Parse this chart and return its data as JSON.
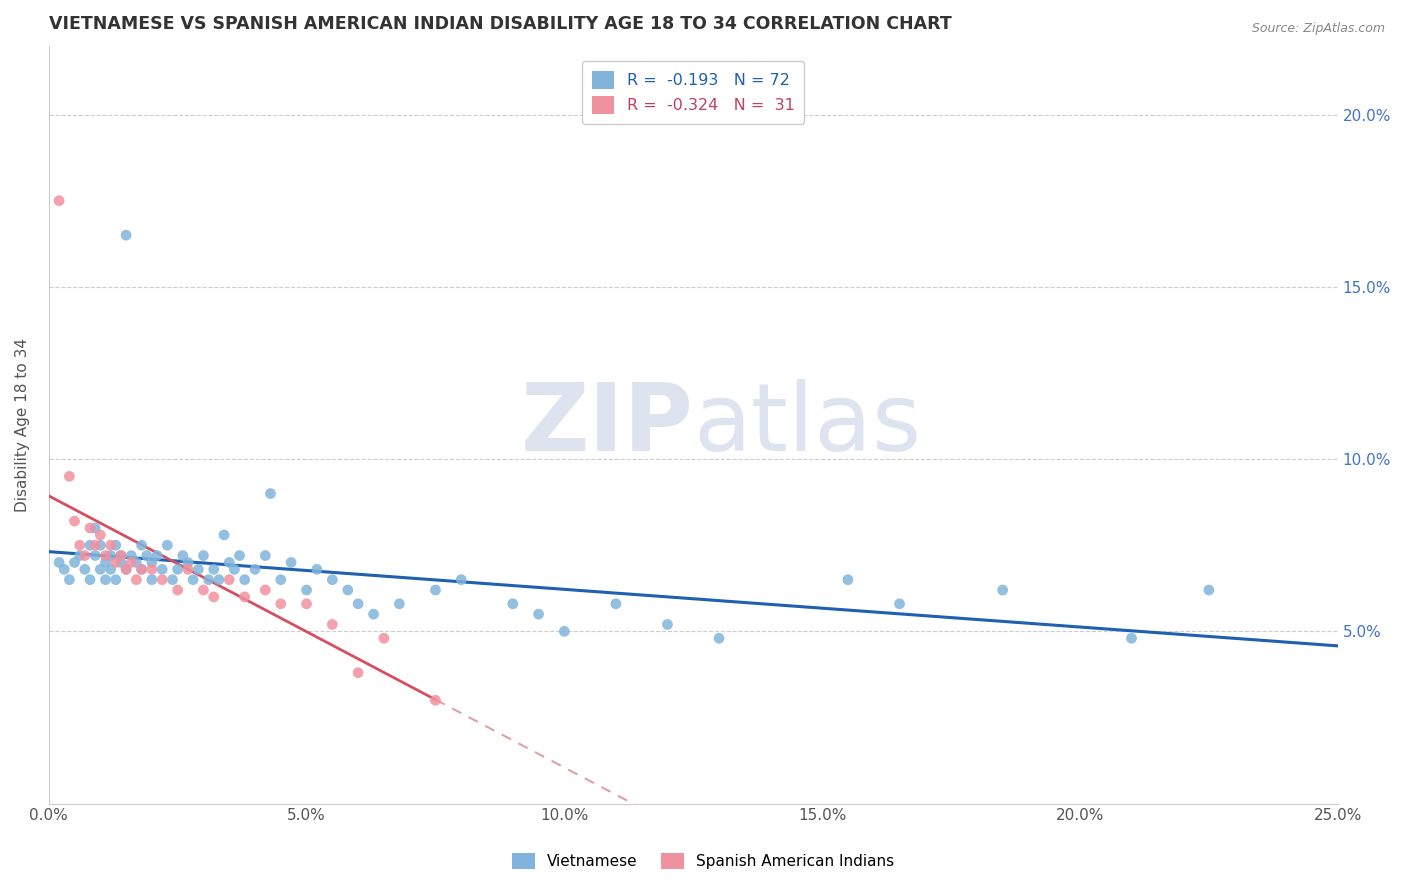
{
  "title": "VIETNAMESE VS SPANISH AMERICAN INDIAN DISABILITY AGE 18 TO 34 CORRELATION CHART",
  "source": "Source: ZipAtlas.com",
  "ylabel": "Disability Age 18 to 34",
  "x_min": 0.0,
  "x_max": 0.25,
  "y_min": 0.0,
  "y_max": 0.22,
  "right_yticks": [
    0.05,
    0.1,
    0.15,
    0.2
  ],
  "right_yticklabels": [
    "5.0%",
    "10.0%",
    "15.0%",
    "20.0%"
  ],
  "bottom_xticks": [
    0.0,
    0.05,
    0.1,
    0.15,
    0.2,
    0.25
  ],
  "bottom_xticklabels": [
    "0.0%",
    "5.0%",
    "10.0%",
    "15.0%",
    "20.0%",
    "25.0%"
  ],
  "legend_line1": "R =  -0.193   N = 72",
  "legend_line2": "R =  -0.324   N =  31",
  "color_vietnamese": "#80b4dc",
  "color_spanish": "#f0919f",
  "color_trendline_viet": "#2060b0",
  "color_trendline_span": "#d45060",
  "color_trendline_span_dash": "#e0a0a8",
  "watermark_zip": "ZIP",
  "watermark_atlas": "atlas",
  "watermark_color": "#dde4ef",
  "viet_x": [
    0.002,
    0.003,
    0.004,
    0.005,
    0.006,
    0.007,
    0.008,
    0.008,
    0.009,
    0.009,
    0.01,
    0.01,
    0.011,
    0.011,
    0.012,
    0.012,
    0.013,
    0.013,
    0.014,
    0.014,
    0.015,
    0.015,
    0.016,
    0.017,
    0.018,
    0.018,
    0.019,
    0.02,
    0.02,
    0.021,
    0.022,
    0.023,
    0.024,
    0.025,
    0.026,
    0.027,
    0.028,
    0.029,
    0.03,
    0.031,
    0.032,
    0.033,
    0.034,
    0.035,
    0.036,
    0.037,
    0.038,
    0.04,
    0.042,
    0.043,
    0.045,
    0.047,
    0.05,
    0.052,
    0.055,
    0.058,
    0.06,
    0.063,
    0.068,
    0.075,
    0.08,
    0.09,
    0.095,
    0.1,
    0.11,
    0.12,
    0.13,
    0.155,
    0.165,
    0.185,
    0.21,
    0.225
  ],
  "viet_y": [
    0.07,
    0.068,
    0.065,
    0.07,
    0.072,
    0.068,
    0.075,
    0.065,
    0.08,
    0.072,
    0.068,
    0.075,
    0.07,
    0.065,
    0.072,
    0.068,
    0.075,
    0.065,
    0.07,
    0.072,
    0.165,
    0.068,
    0.072,
    0.07,
    0.068,
    0.075,
    0.072,
    0.07,
    0.065,
    0.072,
    0.068,
    0.075,
    0.065,
    0.068,
    0.072,
    0.07,
    0.065,
    0.068,
    0.072,
    0.065,
    0.068,
    0.065,
    0.078,
    0.07,
    0.068,
    0.072,
    0.065,
    0.068,
    0.072,
    0.09,
    0.065,
    0.07,
    0.062,
    0.068,
    0.065,
    0.062,
    0.058,
    0.055,
    0.058,
    0.062,
    0.065,
    0.058,
    0.055,
    0.05,
    0.058,
    0.052,
    0.048,
    0.065,
    0.058,
    0.062,
    0.048,
    0.062
  ],
  "span_x": [
    0.002,
    0.004,
    0.005,
    0.006,
    0.007,
    0.008,
    0.009,
    0.01,
    0.011,
    0.012,
    0.013,
    0.014,
    0.015,
    0.016,
    0.017,
    0.018,
    0.02,
    0.022,
    0.025,
    0.027,
    0.03,
    0.032,
    0.035,
    0.038,
    0.042,
    0.045,
    0.05,
    0.055,
    0.06,
    0.065,
    0.075
  ],
  "span_y": [
    0.175,
    0.095,
    0.082,
    0.075,
    0.072,
    0.08,
    0.075,
    0.078,
    0.072,
    0.075,
    0.07,
    0.072,
    0.068,
    0.07,
    0.065,
    0.068,
    0.068,
    0.065,
    0.062,
    0.068,
    0.062,
    0.06,
    0.065,
    0.06,
    0.062,
    0.058,
    0.058,
    0.052,
    0.038,
    0.048,
    0.03
  ],
  "trendline_viet_x0": 0.0,
  "trendline_viet_x1": 0.25,
  "trendline_span_solid_x0": 0.0,
  "trendline_span_solid_x1": 0.075,
  "trendline_span_dash_x0": 0.075,
  "trendline_span_dash_x1": 0.2
}
